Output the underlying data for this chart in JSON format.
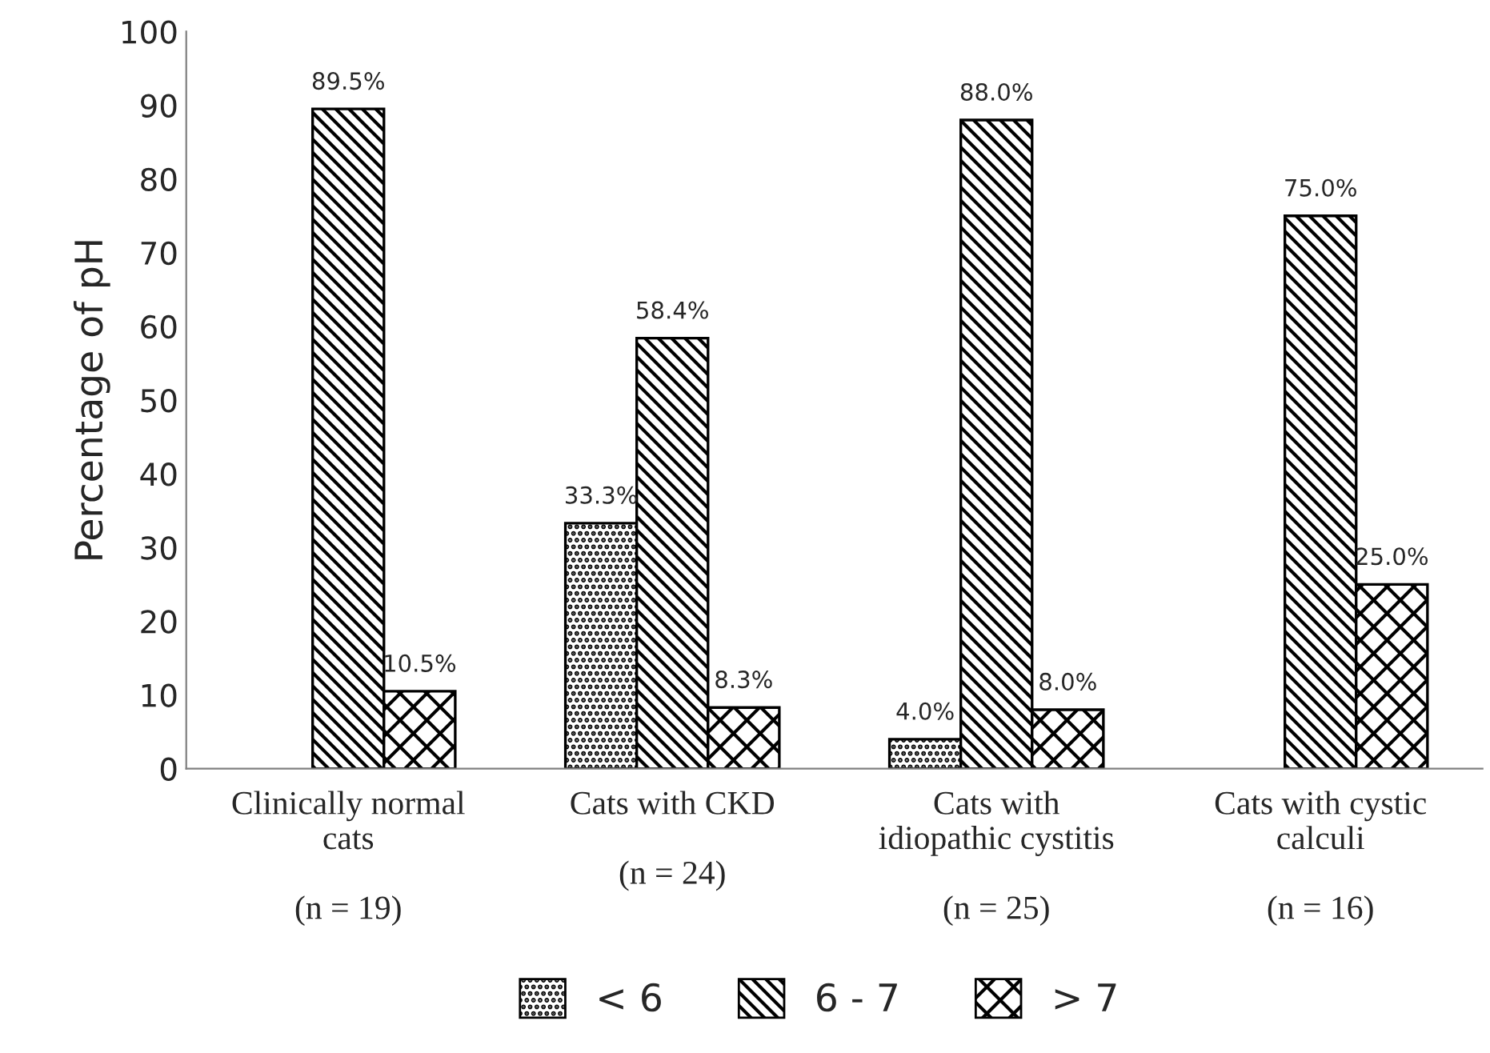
{
  "chart_data": {
    "type": "bar",
    "ylabel": "Percentage of pH",
    "categories": [
      "Clinically normal\ncats\n\n(n = 19)",
      "Cats with CKD\n\n(n = 24)",
      "Cats with\nidiopathic cystitis\n\n(n = 25)",
      "Cats with cystic\ncalculi\n\n(n = 16)"
    ],
    "series": [
      {
        "name": "< 6",
        "color": "#000000",
        "values": [
          null,
          33.3,
          4.0,
          null
        ],
        "value_labels": [
          null,
          "33.3%",
          "4.0%",
          null
        ]
      },
      {
        "name": "6 - 7",
        "color": "#000000",
        "values": [
          89.5,
          58.4,
          88.0,
          75.0
        ],
        "value_labels": [
          "89.5%",
          "58.4%",
          "88.0%",
          "75.0%"
        ]
      },
      {
        "name": "> 7",
        "color": "#000000",
        "values": [
          10.5,
          8.3,
          8.0,
          25.0
        ],
        "value_labels": [
          "10.5%",
          "8.3%",
          "8.0%",
          "25.0%"
        ]
      }
    ],
    "ylim": [
      0,
      100
    ],
    "yticks": [
      0,
      10,
      20,
      30,
      40,
      50,
      60,
      70,
      80,
      90,
      100
    ],
    "grid": false,
    "legend": "bottom"
  }
}
